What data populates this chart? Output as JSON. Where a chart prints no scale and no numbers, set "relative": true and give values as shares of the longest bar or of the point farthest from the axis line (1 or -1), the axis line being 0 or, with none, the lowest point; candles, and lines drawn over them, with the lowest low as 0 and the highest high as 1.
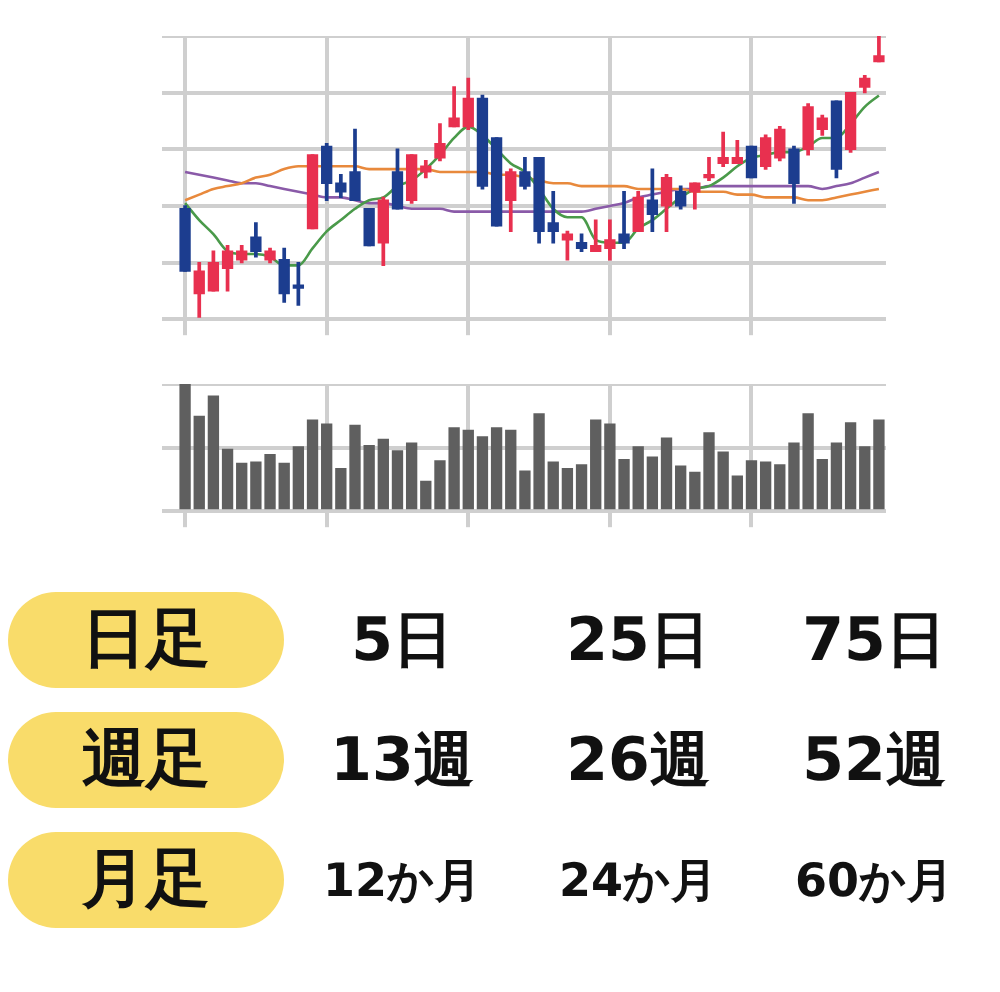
{
  "chart_data": [
    {
      "type": "candlestick",
      "relative": true,
      "grid": true,
      "categories": [
        null,
        null,
        null,
        null,
        null,
        null,
        null,
        null,
        null,
        null,
        null,
        null,
        null,
        null,
        null,
        null,
        null,
        null,
        null,
        null,
        null,
        null,
        null,
        null,
        null,
        null,
        null,
        null,
        null,
        null,
        null,
        null,
        null,
        null,
        null,
        null,
        null,
        null,
        null,
        null,
        null,
        null,
        null,
        null,
        null,
        null,
        null,
        null,
        null,
        null
      ],
      "ohlc": [
        [
          0.39,
          0.4,
          0.17,
          0.17
        ],
        [
          0.09,
          0.2,
          0,
          0.17
        ],
        [
          0.1,
          0.24,
          0.1,
          0.2
        ],
        [
          0.18,
          0.26,
          0.1,
          0.24
        ],
        [
          0.21,
          0.26,
          0.2,
          0.24
        ],
        [
          0.29,
          0.34,
          0.22,
          0.24
        ],
        [
          0.21,
          0.25,
          0.2,
          0.24
        ],
        [
          0.21,
          0.25,
          0.06,
          0.09
        ],
        [
          0.12,
          0.2,
          0.05,
          0.11
        ],
        [
          0.32,
          0.58,
          0.32,
          0.58
        ],
        [
          0.61,
          0.62,
          0.42,
          0.48
        ],
        [
          0.48,
          0.51,
          0.43,
          0.45
        ],
        [
          0.52,
          0.67,
          0.42,
          0.42
        ],
        [
          0.39,
          0.39,
          0.26,
          0.26
        ],
        [
          0.27,
          0.43,
          0.19,
          0.42
        ],
        [
          0.52,
          0.6,
          0.39,
          0.39
        ],
        [
          0.42,
          0.58,
          0.41,
          0.58
        ],
        [
          0.52,
          0.56,
          0.5,
          0.54
        ],
        [
          0.57,
          0.69,
          0.56,
          0.62
        ],
        [
          0.68,
          0.82,
          0.68,
          0.71
        ],
        [
          0.68,
          0.85,
          0.67,
          0.78
        ],
        [
          0.78,
          0.79,
          0.46,
          0.47
        ],
        [
          0.64,
          0.64,
          0.33,
          0.33
        ],
        [
          0.42,
          0.53,
          0.31,
          0.52
        ],
        [
          0.52,
          0.57,
          0.46,
          0.47
        ],
        [
          0.57,
          0.57,
          0.27,
          0.31
        ],
        [
          0.34,
          0.45,
          0.27,
          0.31
        ],
        [
          0.28,
          0.31,
          0.21,
          0.3
        ],
        [
          0.27,
          0.3,
          0.24,
          0.25
        ],
        [
          0.24,
          0.35,
          0.24,
          0.26
        ],
        [
          0.25,
          0.35,
          0.21,
          0.28
        ],
        [
          0.3,
          0.45,
          0.25,
          0.27
        ],
        [
          0.31,
          0.45,
          0.31,
          0.43
        ],
        [
          0.42,
          0.53,
          0.31,
          0.37
        ],
        [
          0.4,
          0.51,
          0.31,
          0.5
        ],
        [
          0.45,
          0.47,
          0.39,
          0.4
        ],
        [
          0.45,
          0.48,
          0.39,
          0.48
        ],
        [
          0.5,
          0.57,
          0.49,
          0.51
        ],
        [
          0.55,
          0.66,
          0.54,
          0.57
        ],
        [
          0.55,
          0.63,
          0.55,
          0.57
        ],
        [
          0.61,
          0.61,
          0.5,
          0.5
        ],
        [
          0.54,
          0.65,
          0.53,
          0.64
        ],
        [
          0.57,
          0.68,
          0.56,
          0.67
        ],
        [
          0.6,
          0.61,
          0.41,
          0.48
        ],
        [
          0.6,
          0.76,
          0.58,
          0.75
        ],
        [
          0.67,
          0.72,
          0.65,
          0.71
        ],
        [
          0.77,
          0.77,
          0.5,
          0.53
        ],
        [
          0.6,
          0.8,
          0.59,
          0.8
        ],
        [
          0.82,
          0.86,
          0.8,
          0.85
        ],
        [
          0.91,
          1,
          0.91,
          0.93
        ]
      ],
      "colors": [
        "#1c3d8f",
        "#e8304f",
        "#e8304f",
        "#e8304f",
        "#e8304f",
        "#1c3d8f",
        "#e8304f",
        "#1c3d8f",
        "#1c3d8f",
        "#e8304f",
        "#1c3d8f",
        "#1c3d8f",
        "#1c3d8f",
        "#1c3d8f",
        "#e8304f",
        "#1c3d8f",
        "#e8304f",
        "#e8304f",
        "#e8304f",
        "#e8304f",
        "#e8304f",
        "#1c3d8f",
        "#1c3d8f",
        "#e8304f",
        "#1c3d8f",
        "#1c3d8f",
        "#1c3d8f",
        "#e8304f",
        "#1c3d8f",
        "#e8304f",
        "#e8304f",
        "#1c3d8f",
        "#e8304f",
        "#1c3d8f",
        "#e8304f",
        "#1c3d8f",
        "#e8304f",
        "#e8304f",
        "#e8304f",
        "#e8304f",
        "#1c3d8f",
        "#e8304f",
        "#e8304f",
        "#1c3d8f",
        "#e8304f",
        "#e8304f",
        "#1c3d8f",
        "#e8304f",
        "#e8304f",
        "#e8304f"
      ],
      "series": [
        {
          "type": "line",
          "color": "#4a9a4a",
          "values": [
            0.41,
            0.35,
            0.3,
            0.24,
            0.23,
            0.23,
            0.22,
            0.19,
            0.19,
            0.25,
            0.31,
            0.35,
            0.39,
            0.42,
            0.43,
            0.47,
            0.49,
            0.53,
            0.58,
            0.64,
            0.68,
            0.65,
            0.6,
            0.55,
            0.52,
            0.46,
            0.39,
            0.36,
            0.36,
            0.28,
            0.27,
            0.27,
            0.32,
            0.35,
            0.39,
            0.43,
            0.46,
            0.47,
            0.5,
            0.54,
            0.57,
            0.58,
            0.59,
            0.59,
            0.61,
            0.64,
            0.64,
            0.69,
            0.75,
            0.79
          ]
        },
        {
          "type": "line",
          "color": "#e8893c",
          "values": [
            0.42,
            0.44,
            0.46,
            0.47,
            0.48,
            0.5,
            0.51,
            0.53,
            0.54,
            0.54,
            0.54,
            0.54,
            0.54,
            0.53,
            0.53,
            0.53,
            0.53,
            0.53,
            0.52,
            0.52,
            0.52,
            0.52,
            0.51,
            0.51,
            0.5,
            0.49,
            0.48,
            0.48,
            0.47,
            0.47,
            0.47,
            0.47,
            0.46,
            0.46,
            0.46,
            0.46,
            0.45,
            0.45,
            0.45,
            0.44,
            0.44,
            0.43,
            0.43,
            0.43,
            0.42,
            0.42,
            0.43,
            0.44,
            0.45,
            0.46
          ]
        },
        {
          "type": "line",
          "color": "#8a5aa8",
          "values": [
            0.52,
            0.51,
            0.5,
            0.49,
            0.48,
            0.48,
            0.47,
            0.46,
            0.45,
            0.44,
            0.43,
            0.43,
            0.42,
            0.41,
            0.41,
            0.4,
            0.39,
            0.39,
            0.39,
            0.38,
            0.38,
            0.38,
            0.38,
            0.38,
            0.38,
            0.38,
            0.38,
            0.38,
            0.38,
            0.39,
            0.4,
            0.41,
            0.43,
            0.44,
            0.45,
            0.46,
            0.46,
            0.47,
            0.47,
            0.47,
            0.47,
            0.47,
            0.47,
            0.47,
            0.47,
            0.46,
            0.47,
            0.48,
            0.5,
            0.52
          ]
        }
      ]
    },
    {
      "type": "bar",
      "relative": true,
      "grid": true,
      "color": "#5f5f5f",
      "categories": [
        null,
        null,
        null,
        null,
        null,
        null,
        null,
        null,
        null,
        null,
        null,
        null,
        null,
        null,
        null,
        null,
        null,
        null,
        null,
        null,
        null,
        null,
        null,
        null,
        null,
        null,
        null,
        null,
        null,
        null,
        null,
        null,
        null,
        null,
        null,
        null,
        null,
        null,
        null,
        null,
        null,
        null,
        null,
        null,
        null,
        null,
        null,
        null,
        null,
        null
      ],
      "values": [
        1,
        0.75,
        0.91,
        0.49,
        0.38,
        0.39,
        0.45,
        0.38,
        0.51,
        0.72,
        0.69,
        0.34,
        0.68,
        0.52,
        0.57,
        0.48,
        0.54,
        0.24,
        0.4,
        0.66,
        0.64,
        0.59,
        0.66,
        0.64,
        0.32,
        0.77,
        0.39,
        0.34,
        0.37,
        0.72,
        0.69,
        0.41,
        0.51,
        0.43,
        0.58,
        0.36,
        0.31,
        0.62,
        0.47,
        0.28,
        0.4,
        0.39,
        0.37,
        0.54,
        0.77,
        0.41,
        0.54,
        0.7,
        0.51,
        0.72
      ]
    },
    {
      "type": "other",
      "annotations": [
        "日足",
        "5日",
        "25日",
        "75日",
        "週足",
        "13週",
        "26週",
        "52週",
        "月足",
        "12か月",
        "24か月",
        "60か月"
      ]
    }
  ]
}
